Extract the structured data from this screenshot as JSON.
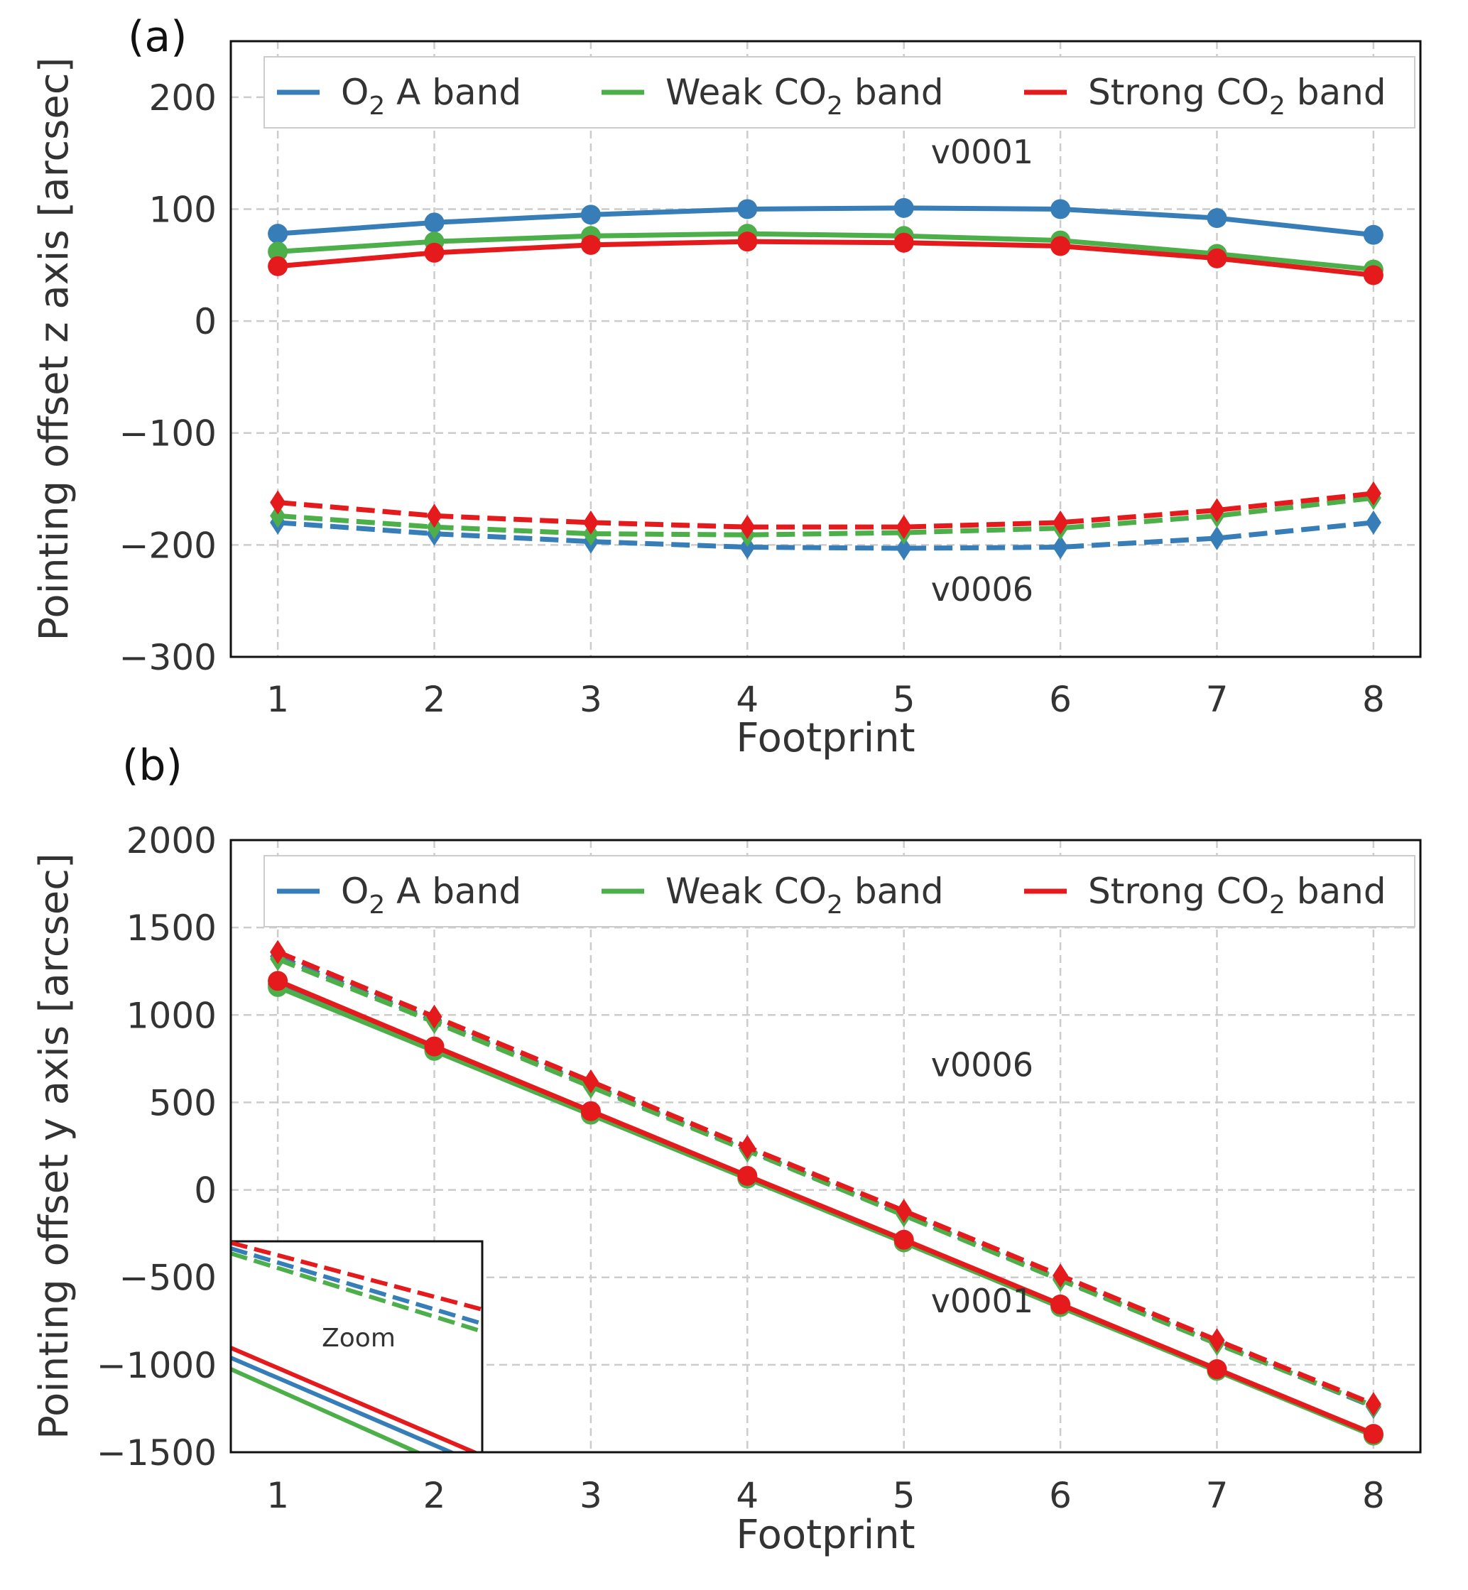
{
  "chart_data": [
    {
      "panel_label": "(a)",
      "type": "line",
      "xlabel": "Footprint",
      "ylabel": "Pointing offset z axis [arcsec]",
      "x": [
        1,
        2,
        3,
        4,
        5,
        6,
        7,
        8
      ],
      "xlim": [
        0.7,
        8.3
      ],
      "ylim": [
        -300,
        250
      ],
      "yticks": [
        -300,
        -200,
        -100,
        0,
        100,
        200
      ],
      "ytick_labels": [
        "−300",
        "−200",
        "−100",
        "0",
        "100",
        "200"
      ],
      "grid": true,
      "legend_position": "top",
      "legend": [
        {
          "prefix": "O",
          "sub": "2",
          "suffix": " A band",
          "color": "#377eb8"
        },
        {
          "prefix": "Weak CO",
          "sub": "2",
          "suffix": " band",
          "color": "#4daf4a"
        },
        {
          "prefix": "Strong CO",
          "sub": "2",
          "suffix": " band",
          "color": "#e41a1c"
        }
      ],
      "annotations": [
        {
          "text": "v0001",
          "x": 5.5,
          "y": 141
        },
        {
          "text": "v0006",
          "x": 5.5,
          "y": -250
        }
      ],
      "series": [
        {
          "name": "O2 A band v0001",
          "color": "#377eb8",
          "style": "solid",
          "marker": "circle",
          "values": [
            78,
            88,
            95,
            100,
            101,
            100,
            92,
            77
          ]
        },
        {
          "name": "Weak CO2 band v0001",
          "color": "#4daf4a",
          "style": "solid",
          "marker": "circle",
          "values": [
            62,
            71,
            76,
            78,
            76,
            72,
            60,
            46
          ]
        },
        {
          "name": "Strong CO2 band v0001",
          "color": "#e41a1c",
          "style": "solid",
          "marker": "circle",
          "values": [
            49,
            61,
            68,
            71,
            70,
            67,
            56,
            41
          ]
        },
        {
          "name": "O2 A band v0006",
          "color": "#377eb8",
          "style": "dashed",
          "marker": "diamond",
          "values": [
            -180,
            -190,
            -197,
            -202,
            -203,
            -202,
            -194,
            -180
          ]
        },
        {
          "name": "Weak CO2 band v0006",
          "color": "#4daf4a",
          "style": "dashed",
          "marker": "diamond",
          "values": [
            -174,
            -184,
            -190,
            -191,
            -189,
            -185,
            -174,
            -158
          ]
        },
        {
          "name": "Strong CO2 band v0006",
          "color": "#e41a1c",
          "style": "dashed",
          "marker": "diamond",
          "values": [
            -162,
            -174,
            -180,
            -184,
            -184,
            -180,
            -169,
            -154
          ]
        }
      ]
    },
    {
      "panel_label": "(b)",
      "type": "line",
      "xlabel": "Footprint",
      "ylabel": "Pointing offset y axis [arcsec]",
      "x": [
        1,
        2,
        3,
        4,
        5,
        6,
        7,
        8
      ],
      "xlim": [
        0.7,
        8.3
      ],
      "ylim": [
        -1500,
        2000
      ],
      "yticks": [
        -1500,
        -1000,
        -500,
        0,
        500,
        1000,
        1500,
        2000
      ],
      "ytick_labels": [
        "−1500",
        "−1000",
        "−500",
        "0",
        "500",
        "1000",
        "1500",
        "2000"
      ],
      "grid": true,
      "legend_position": "top",
      "legend": [
        {
          "prefix": "O",
          "sub": "2",
          "suffix": " A band",
          "color": "#377eb8"
        },
        {
          "prefix": "Weak CO",
          "sub": "2",
          "suffix": " band",
          "color": "#4daf4a"
        },
        {
          "prefix": "Strong CO",
          "sub": "2",
          "suffix": " band",
          "color": "#e41a1c"
        }
      ],
      "annotations": [
        {
          "text": "v0006",
          "x": 5.5,
          "y": 650
        },
        {
          "text": "v0001",
          "x": 5.5,
          "y": -700
        }
      ],
      "inset": {
        "label": "Zoom",
        "location": "lower-left"
      },
      "series": [
        {
          "name": "O2 A band v0001",
          "color": "#377eb8",
          "style": "solid",
          "marker": "circle",
          "values": [
            1175,
            805,
            440,
            75,
            -290,
            -660,
            -1030,
            -1400
          ]
        },
        {
          "name": "Weak CO2 band v0001",
          "color": "#4daf4a",
          "style": "solid",
          "marker": "circle",
          "values": [
            1160,
            795,
            430,
            65,
            -300,
            -670,
            -1035,
            -1405
          ]
        },
        {
          "name": "Strong CO2 band v0001",
          "color": "#e41a1c",
          "style": "solid",
          "marker": "circle",
          "values": [
            1195,
            820,
            450,
            80,
            -285,
            -655,
            -1025,
            -1395
          ]
        },
        {
          "name": "O2 A band v0006",
          "color": "#377eb8",
          "style": "dashed",
          "marker": "diamond",
          "values": [
            1335,
            970,
            600,
            230,
            -140,
            -510,
            -875,
            -1240
          ]
        },
        {
          "name": "Weak CO2 band v0006",
          "color": "#4daf4a",
          "style": "dashed",
          "marker": "diamond",
          "values": [
            1320,
            960,
            590,
            225,
            -145,
            -515,
            -880,
            -1235
          ]
        },
        {
          "name": "Strong CO2 band v0006",
          "color": "#e41a1c",
          "style": "dashed",
          "marker": "diamond",
          "values": [
            1360,
            990,
            620,
            245,
            -120,
            -490,
            -860,
            -1225
          ]
        }
      ]
    }
  ]
}
